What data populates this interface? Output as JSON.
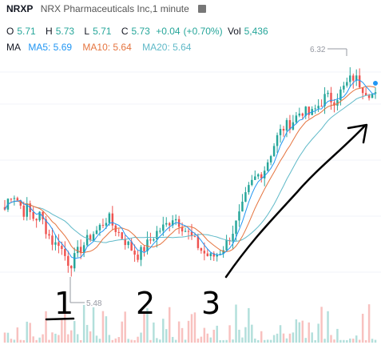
{
  "header": {
    "symbol": "NRXP",
    "title": "NRX Pharmaceuticals Inc,1 minute",
    "ohlc": {
      "o_label": "O",
      "o": "5.71",
      "h_label": "H",
      "h": "5.73",
      "l_label": "L",
      "l": "5.71",
      "c_label": "C",
      "c": "5.73",
      "change": "+0.04",
      "change_pct": "(+0.70%)",
      "vol_label": "Vol",
      "vol": "5,436"
    },
    "ma": {
      "label": "MA",
      "ma5": "MA5: 5.69",
      "ma10": "MA10: 5.64",
      "ma20": "MA20: 5.64"
    }
  },
  "annotations": {
    "high_label": "6.32",
    "low_label": "5.48",
    "hand_1": "1",
    "hand_2": "2",
    "hand_3": "3"
  },
  "colors": {
    "up": "#26a69a",
    "down": "#ef5350",
    "up_volume": "#b2dfdb",
    "down_volume": "#f8c1bf",
    "ma5": "#2196f3",
    "ma10": "#e5743f",
    "ma20": "#5fb9c8",
    "ink": "#000000"
  },
  "chart_data": {
    "type": "candlestick",
    "symbol": "NRXP",
    "interval": "1 minute",
    "ylim": [
      5.45,
      6.4
    ],
    "marked_high": 6.32,
    "marked_low": 5.48,
    "close_path": [
      5.75,
      5.8,
      5.82,
      5.8,
      5.77,
      5.74,
      5.76,
      5.72,
      5.71,
      5.73,
      5.7,
      5.66,
      5.63,
      5.6,
      5.62,
      5.58,
      5.55,
      5.52,
      5.54,
      5.57,
      5.59,
      5.61,
      5.63,
      5.65,
      5.66,
      5.68,
      5.7,
      5.72,
      5.69,
      5.67,
      5.65,
      5.63,
      5.61,
      5.59,
      5.57,
      5.56,
      5.58,
      5.6,
      5.62,
      5.64,
      5.66,
      5.67,
      5.68,
      5.7,
      5.72,
      5.71,
      5.69,
      5.67,
      5.65,
      5.63,
      5.61,
      5.59,
      5.57,
      5.56,
      5.55,
      5.56,
      5.57,
      5.59,
      5.61,
      5.64,
      5.67,
      5.71,
      5.75,
      5.8,
      5.84,
      5.87,
      5.89,
      5.9,
      5.92,
      5.96,
      6.0,
      6.04,
      6.07,
      6.09,
      6.1,
      6.11,
      6.13,
      6.15,
      6.16,
      6.15,
      6.14,
      6.16,
      6.18,
      6.2,
      6.22,
      6.21,
      6.2,
      6.22,
      6.24,
      6.26,
      6.28,
      6.3,
      6.29,
      6.27,
      6.25,
      6.24,
      6.23,
      6.22
    ]
  }
}
